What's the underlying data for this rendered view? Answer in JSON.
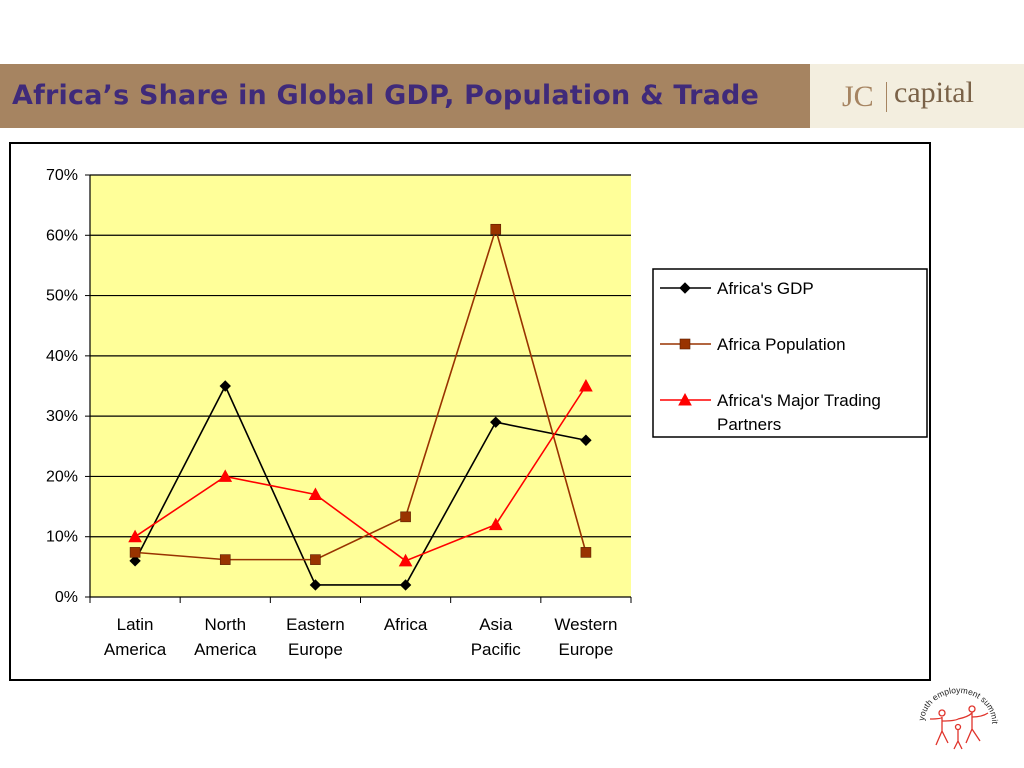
{
  "header": {
    "title": "Africa’s Share in Global GDP, Population & Trade",
    "logo_jc": "JC",
    "logo_capital": "capital"
  },
  "footer_logo": {
    "text": "youth employment summit",
    "icon": "people-ring-icon"
  },
  "colors": {
    "title_bar": "#a68461",
    "title_text": "#3f2a7a",
    "plot_bg": "#ffff99",
    "gdp": "#000000",
    "population": "#993300",
    "trade": "#ff0000"
  },
  "chart_data": {
    "type": "line",
    "categories": [
      [
        "Latin",
        "America"
      ],
      [
        "North",
        "America"
      ],
      [
        "Eastern",
        "Europe"
      ],
      [
        "Africa"
      ],
      [
        "Asia",
        "Pacific"
      ],
      [
        "Western",
        "Europe"
      ]
    ],
    "ylim": [
      0,
      70
    ],
    "yticks": [
      "0%",
      "10%",
      "20%",
      "30%",
      "40%",
      "50%",
      "60%",
      "70%"
    ],
    "grid": true,
    "legend_position": "right",
    "series": [
      {
        "name": "Africa's GDP",
        "marker": "diamond",
        "color": "#000000",
        "values": [
          6,
          35,
          2,
          2,
          29,
          26
        ]
      },
      {
        "name": "Africa Population",
        "marker": "square",
        "color": "#993300",
        "values": [
          7.4,
          6.2,
          6.2,
          13.3,
          61,
          7.4
        ]
      },
      {
        "name": "Africa's Major Trading Partners",
        "marker": "triangle",
        "color": "#ff0000",
        "values": [
          10,
          20,
          17,
          6,
          12,
          35
        ]
      }
    ],
    "legend_lines": [
      [
        "Africa's GDP"
      ],
      [
        "Africa Population"
      ],
      [
        "Africa's Major Trading",
        "Partners"
      ]
    ]
  }
}
